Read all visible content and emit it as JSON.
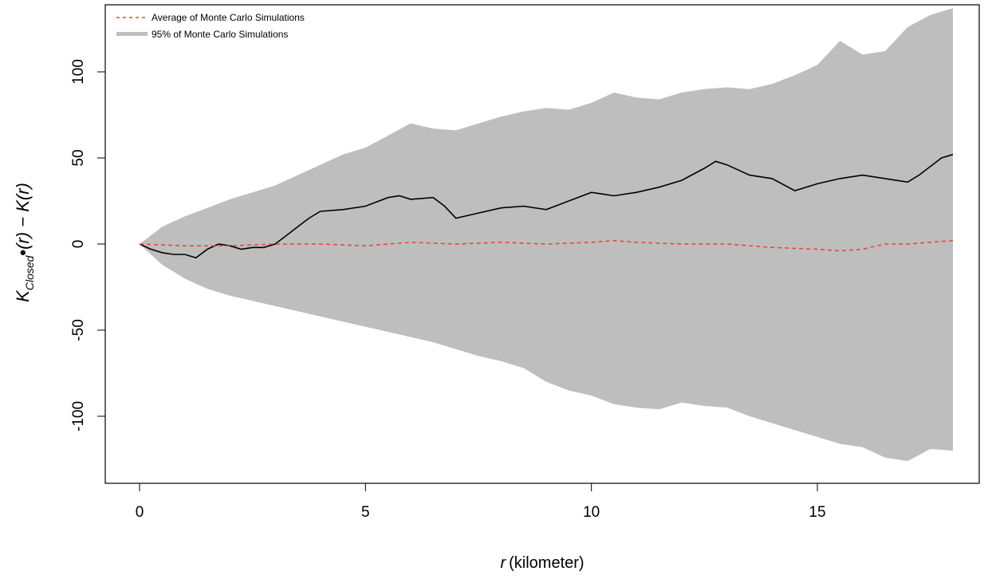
{
  "chart_data": {
    "type": "line",
    "xlabel": {
      "italic": "r",
      "rest": "(kilometer)"
    },
    "ylabel": {
      "K": "K",
      "sub": "Closed",
      "mid": "(r) − K(r)"
    },
    "xlim": [
      0,
      18
    ],
    "ylim": [
      -138,
      138
    ],
    "x_ticks": [
      "0",
      "5",
      "10",
      "15"
    ],
    "y_ticks": [
      "-100",
      "-50",
      "0",
      "50",
      "100"
    ],
    "legend": {
      "position": "top-left",
      "items": [
        {
          "label": "Average of Monte Carlo Simulations",
          "style": "dashed",
          "color": "#e8413a"
        },
        {
          "label": "95% of Monte Carlo Simulations",
          "style": "band",
          "color": "#bebebe"
        }
      ]
    },
    "colors": {
      "band": "#bebebe",
      "observed": "#000000",
      "average": "#e8413a"
    },
    "band_upper": {
      "x": [
        0,
        0.5,
        1,
        1.5,
        2,
        2.5,
        3,
        3.5,
        4,
        4.5,
        5,
        5.5,
        6,
        6.5,
        7,
        7.5,
        8,
        8.5,
        9,
        9.5,
        10,
        10.5,
        11,
        11.5,
        12,
        12.5,
        13,
        13.5,
        14,
        14.5,
        15,
        15.5,
        16,
        16.5,
        17,
        17.5,
        18
      ],
      "y": [
        0,
        10,
        16,
        21,
        26,
        30,
        34,
        40,
        46,
        52,
        56,
        63,
        70,
        67,
        66,
        70,
        74,
        77,
        79,
        78,
        82,
        88,
        85,
        84,
        88,
        90,
        91,
        90,
        93,
        98,
        104,
        118,
        110,
        112,
        126,
        133,
        137
      ]
    },
    "band_lower": {
      "x": [
        0,
        0.5,
        1,
        1.5,
        2,
        2.5,
        3,
        3.5,
        4,
        4.5,
        5,
        5.5,
        6,
        6.5,
        7,
        7.5,
        8,
        8.5,
        9,
        9.5,
        10,
        10.5,
        11,
        11.5,
        12,
        12.5,
        13,
        13.5,
        14,
        14.5,
        15,
        15.5,
        16,
        16.5,
        17,
        17.5,
        18
      ],
      "y": [
        0,
        -12,
        -20,
        -26,
        -30,
        -33,
        -36,
        -39,
        -42,
        -45,
        -48,
        -51,
        -54,
        -57,
        -61,
        -65,
        -68,
        -72,
        -80,
        -85,
        -88,
        -93,
        -95,
        -96,
        -92,
        -94,
        -95,
        -100,
        -104,
        -108,
        -112,
        -116,
        -118,
        -124,
        -126,
        -119,
        -120
      ]
    },
    "series": [
      {
        "x": [
          0,
          0.25,
          0.5,
          0.75,
          1,
          1.25,
          1.5,
          1.75,
          2,
          2.25,
          2.5,
          2.75,
          3,
          3.25,
          3.5,
          3.75,
          4,
          4.5,
          5,
          5.5,
          5.75,
          6,
          6.5,
          6.75,
          7,
          7.5,
          8,
          8.5,
          9,
          9.5,
          10,
          10.5,
          11,
          11.5,
          12,
          12.5,
          12.75,
          13,
          13.5,
          14,
          14.5,
          15,
          15.5,
          16,
          16.5,
          17,
          17.25,
          17.5,
          17.75,
          18
        ],
        "y": [
          0,
          -3,
          -5,
          -6,
          -6,
          -8,
          -3,
          0,
          -1,
          -3,
          -2,
          -2,
          0,
          5,
          10,
          15,
          19,
          20,
          22,
          27,
          28,
          26,
          27,
          22,
          15,
          18,
          21,
          22,
          20,
          25,
          30,
          28,
          30,
          33,
          37,
          44,
          48,
          46,
          40,
          38,
          31,
          35,
          38,
          40,
          38,
          36,
          40,
          45,
          50,
          52
        ]
      },
      {
        "x": [
          0,
          1,
          2,
          3,
          4,
          5,
          6,
          7,
          8,
          9,
          10,
          10.5,
          11,
          12,
          13,
          14,
          15,
          15.5,
          16,
          16.5,
          17,
          18
        ],
        "y": [
          0,
          -1,
          -1,
          0,
          0,
          -1,
          1,
          0,
          1,
          0,
          1,
          2,
          1,
          0,
          0,
          -2,
          -3,
          -4,
          -3,
          0,
          0,
          2
        ]
      }
    ]
  }
}
